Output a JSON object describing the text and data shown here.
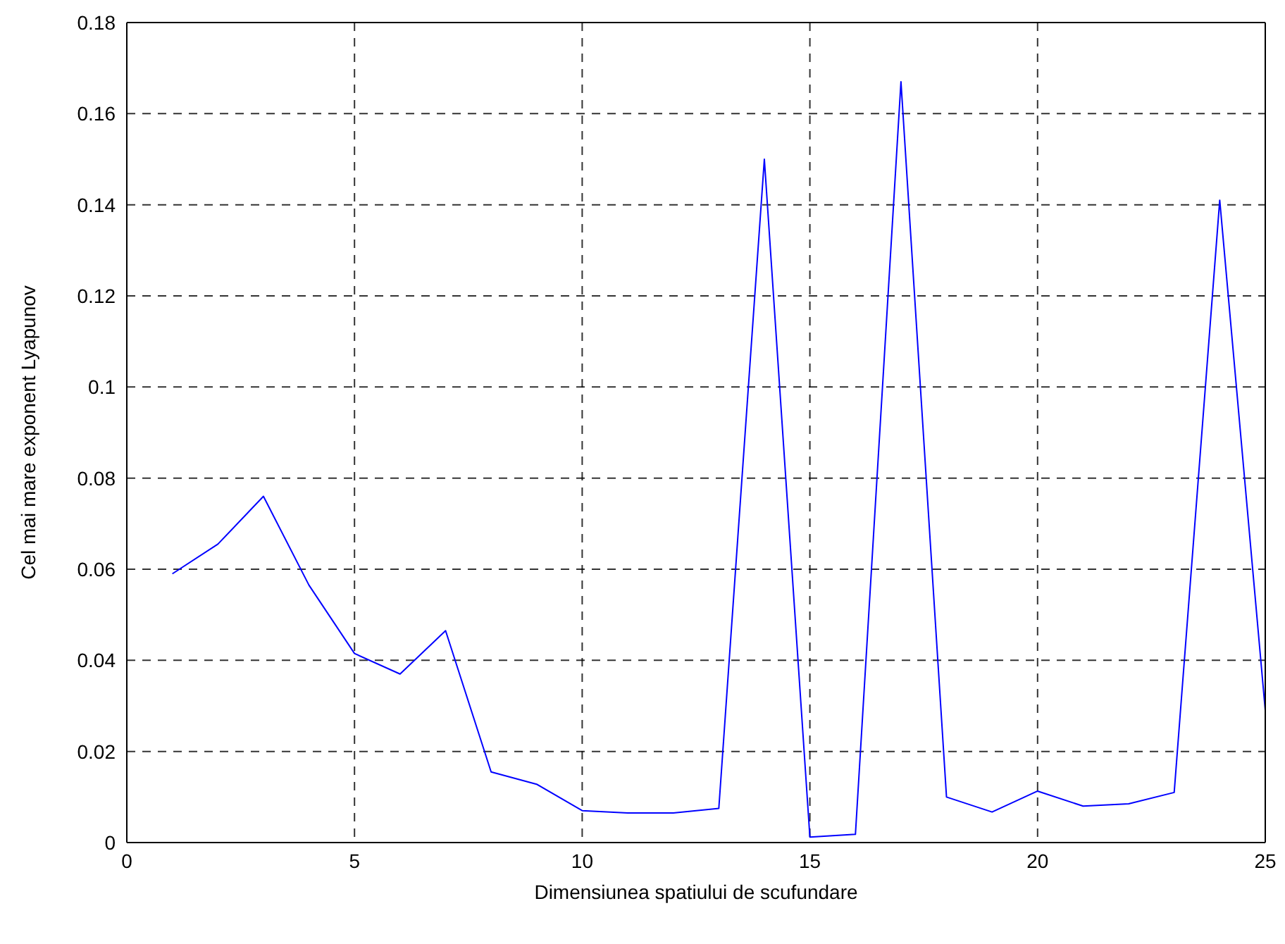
{
  "chart_data": {
    "type": "line",
    "xlabel": "Dimensiunea spatiului de scufundare",
    "ylabel": "Cel mai mare exponent Lyapunov",
    "x": [
      1,
      2,
      3,
      4,
      5,
      6,
      7,
      8,
      9,
      10,
      11,
      12,
      13,
      14,
      15,
      16,
      17,
      18,
      19,
      20,
      21,
      22,
      23,
      24,
      25
    ],
    "series": [
      {
        "color": "#0000ff",
        "values": [
          0.059,
          0.0655,
          0.076,
          0.0565,
          0.0415,
          0.037,
          0.0465,
          0.0155,
          0.0128,
          0.007,
          0.0065,
          0.0065,
          0.0075,
          0.15,
          0.0012,
          0.0018,
          0.167,
          0.01,
          0.0067,
          0.0113,
          0.008,
          0.0085,
          0.011,
          0.141,
          0.029
        ]
      }
    ],
    "xlim": [
      0,
      25
    ],
    "xticks": [
      0,
      5,
      10,
      15,
      20,
      25
    ],
    "ylim": [
      0,
      0.18
    ],
    "yticks": [
      0,
      0.02,
      0.04,
      0.06,
      0.08,
      0.1,
      0.12,
      0.14,
      0.16,
      0.18
    ],
    "grid": true,
    "legend": false,
    "marker": "none",
    "line_style": "solid"
  }
}
